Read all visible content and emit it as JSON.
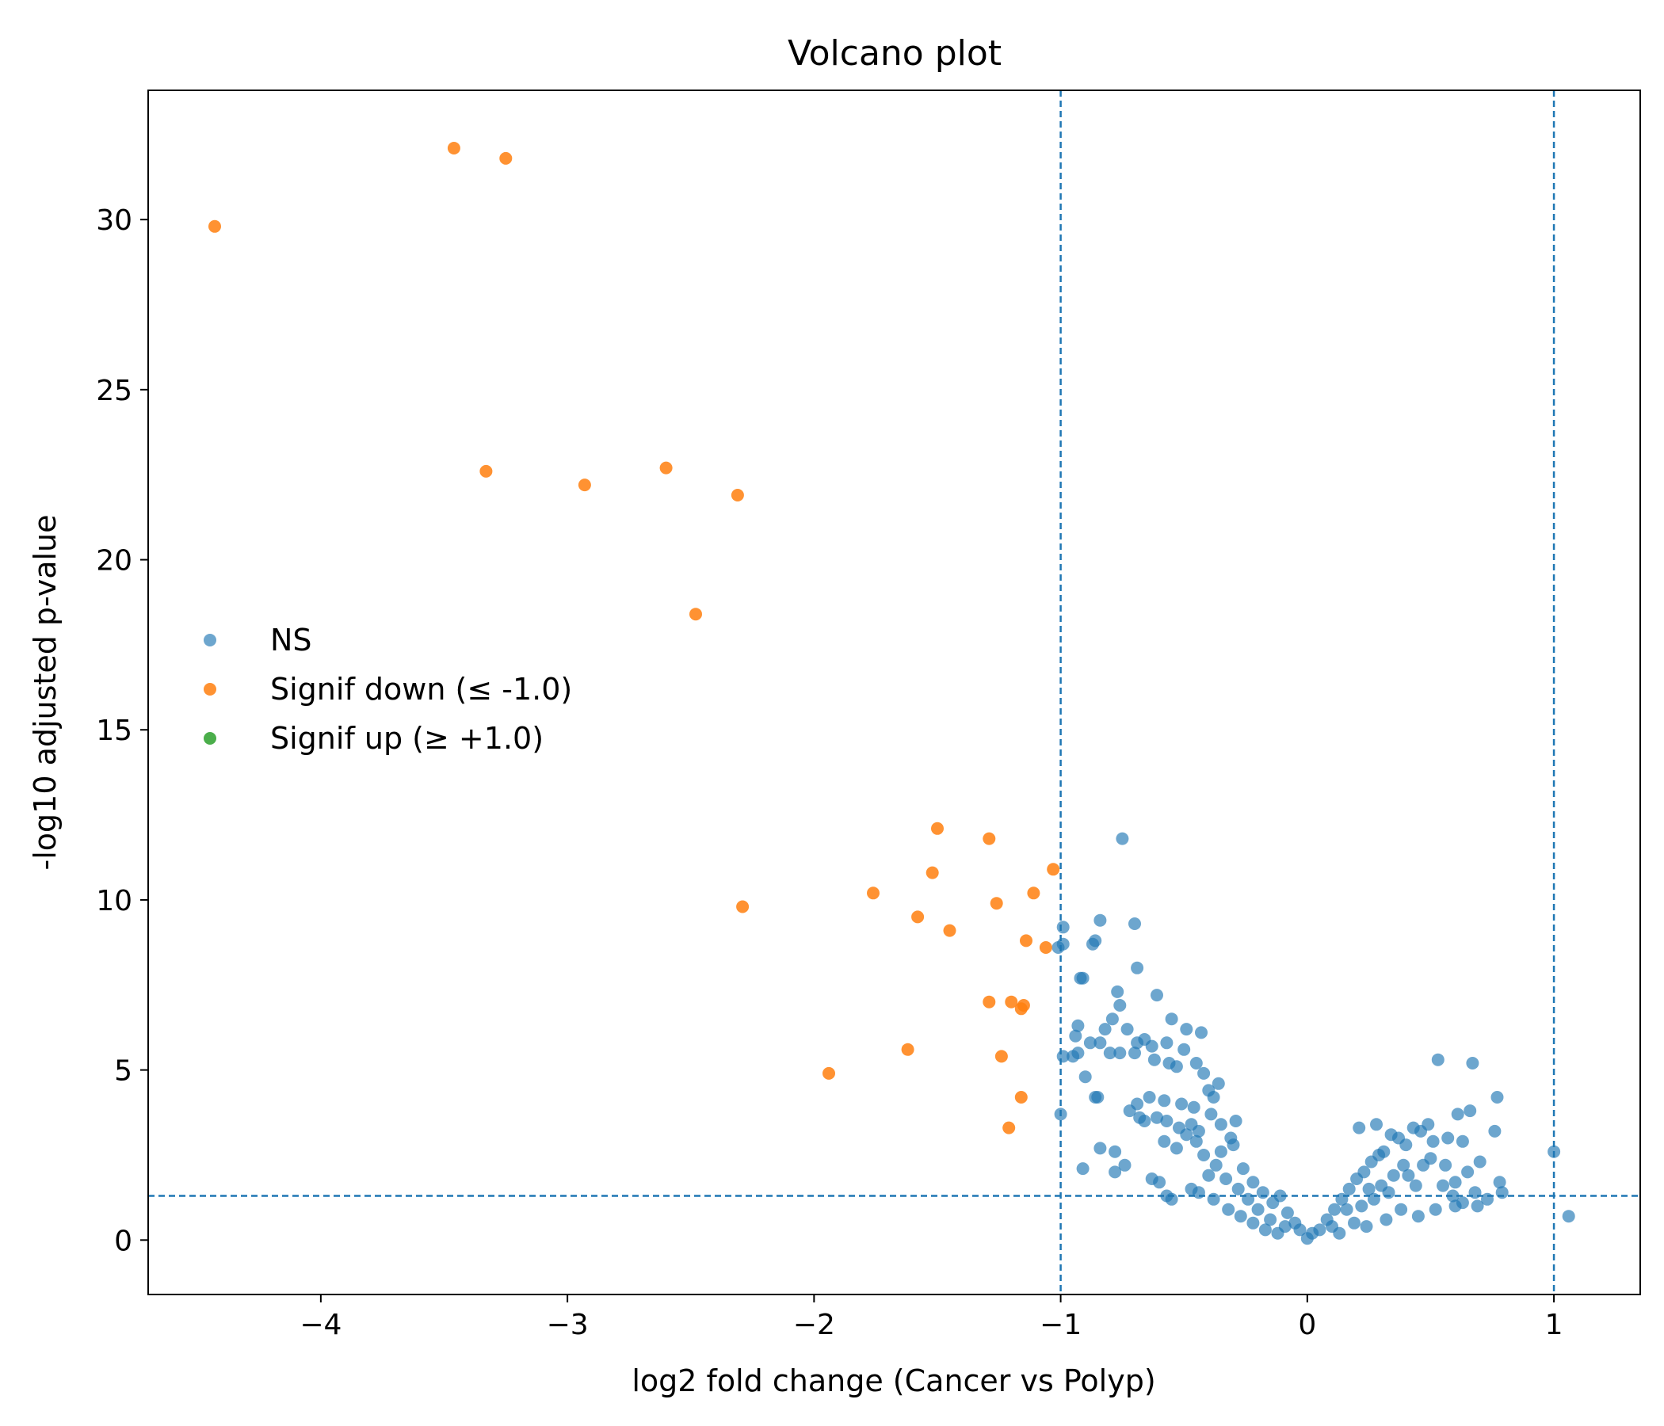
{
  "chart_data": {
    "type": "scatter",
    "title": "Volcano plot",
    "xlabel": "log2 fold change (Cancer vs Polyp)",
    "ylabel": "-log10 adjusted p-value",
    "xlim": [
      -4.7,
      1.35
    ],
    "ylim": [
      -1.6,
      33.8
    ],
    "xticks": [
      -4,
      -3,
      -2,
      -1,
      0,
      1
    ],
    "xtick_labels": [
      "−4",
      "−3",
      "−2",
      "−1",
      "0",
      "1"
    ],
    "yticks": [
      0,
      5,
      10,
      15,
      20,
      25,
      30
    ],
    "ytick_labels": [
      "0",
      "5",
      "10",
      "15",
      "20",
      "25",
      "30"
    ],
    "grid": false,
    "legend_position": "center-left",
    "thresholds": {
      "log2fc": [
        -1.0,
        1.0
      ],
      "neg_log10_p": 1.3
    },
    "threshold_color": "#1f77b4",
    "series": [
      {
        "name": "NS",
        "color": "#1f77b4",
        "alpha": 0.65,
        "points": [
          [
            -0.75,
            11.8
          ],
          [
            -0.99,
            9.2
          ],
          [
            -0.99,
            8.7
          ],
          [
            -1.01,
            8.6
          ],
          [
            -0.84,
            9.4
          ],
          [
            -0.86,
            8.8
          ],
          [
            -0.87,
            8.7
          ],
          [
            -0.7,
            9.3
          ],
          [
            -0.69,
            8.0
          ],
          [
            -0.91,
            7.7
          ],
          [
            -0.92,
            7.7
          ],
          [
            -0.77,
            7.3
          ],
          [
            -0.76,
            6.9
          ],
          [
            -0.61,
            7.2
          ],
          [
            -0.55,
            6.5
          ],
          [
            -0.49,
            6.2
          ],
          [
            -0.43,
            6.1
          ],
          [
            -0.93,
            6.3
          ],
          [
            -0.94,
            6.0
          ],
          [
            -0.82,
            6.2
          ],
          [
            -0.79,
            6.5
          ],
          [
            -0.73,
            6.2
          ],
          [
            -0.66,
            5.9
          ],
          [
            -0.69,
            5.8
          ],
          [
            -0.63,
            5.7
          ],
          [
            -0.57,
            5.8
          ],
          [
            -0.5,
            5.6
          ],
          [
            -0.99,
            5.4
          ],
          [
            -0.93,
            5.5
          ],
          [
            -0.88,
            5.8
          ],
          [
            -0.84,
            5.8
          ],
          [
            -0.8,
            5.5
          ],
          [
            -0.76,
            5.5
          ],
          [
            -0.7,
            5.5
          ],
          [
            -0.62,
            5.3
          ],
          [
            -0.56,
            5.2
          ],
          [
            -0.53,
            5.1
          ],
          [
            -0.45,
            5.2
          ],
          [
            -0.42,
            4.9
          ],
          [
            -0.95,
            5.4
          ],
          [
            -0.9,
            4.8
          ],
          [
            -0.86,
            4.2
          ],
          [
            -0.85,
            4.2
          ],
          [
            -0.69,
            4.0
          ],
          [
            -0.64,
            4.2
          ],
          [
            -0.58,
            4.1
          ],
          [
            -0.51,
            4.0
          ],
          [
            -0.46,
            3.9
          ],
          [
            -0.4,
            4.4
          ],
          [
            -0.38,
            4.2
          ],
          [
            -0.36,
            4.6
          ],
          [
            -1.0,
            3.7
          ],
          [
            -0.72,
            3.8
          ],
          [
            -0.68,
            3.6
          ],
          [
            -0.66,
            3.5
          ],
          [
            -0.61,
            3.6
          ],
          [
            -0.57,
            3.5
          ],
          [
            -0.52,
            3.3
          ],
          [
            -0.47,
            3.4
          ],
          [
            -0.44,
            3.2
          ],
          [
            -0.39,
            3.7
          ],
          [
            -0.35,
            3.4
          ],
          [
            -0.29,
            3.5
          ],
          [
            -0.31,
            3.0
          ],
          [
            -0.84,
            2.7
          ],
          [
            -0.78,
            2.6
          ],
          [
            -0.74,
            2.2
          ],
          [
            -0.78,
            2.0
          ],
          [
            -0.91,
            2.1
          ],
          [
            -0.63,
            1.8
          ],
          [
            -0.6,
            1.7
          ],
          [
            -0.57,
            1.3
          ],
          [
            -0.55,
            1.2
          ],
          [
            -0.47,
            1.5
          ],
          [
            -0.4,
            1.9
          ],
          [
            -0.35,
            2.6
          ],
          [
            -0.3,
            2.8
          ],
          [
            -0.26,
            2.1
          ],
          [
            -0.22,
            1.7
          ],
          [
            -0.18,
            1.4
          ],
          [
            -0.14,
            1.1
          ],
          [
            -0.11,
            1.3
          ],
          [
            -0.08,
            0.8
          ],
          [
            -0.05,
            0.5
          ],
          [
            -0.03,
            0.3
          ],
          [
            0.0,
            0.05
          ],
          [
            0.02,
            0.2
          ],
          [
            0.05,
            0.3
          ],
          [
            0.08,
            0.6
          ],
          [
            0.11,
            0.9
          ],
          [
            0.14,
            1.2
          ],
          [
            0.17,
            1.5
          ],
          [
            0.2,
            1.8
          ],
          [
            0.23,
            2.0
          ],
          [
            0.26,
            2.3
          ],
          [
            0.29,
            2.5
          ],
          [
            0.31,
            2.6
          ],
          [
            0.34,
            3.1
          ],
          [
            0.37,
            3.0
          ],
          [
            0.4,
            2.8
          ],
          [
            0.43,
            3.3
          ],
          [
            0.46,
            3.2
          ],
          [
            0.49,
            3.4
          ],
          [
            0.51,
            2.9
          ],
          [
            0.53,
            5.3
          ],
          [
            0.67,
            5.2
          ],
          [
            0.66,
            3.8
          ],
          [
            0.61,
            3.7
          ],
          [
            0.57,
            3.0
          ],
          [
            0.63,
            2.9
          ],
          [
            0.77,
            4.2
          ],
          [
            0.76,
            3.2
          ],
          [
            0.7,
            2.3
          ],
          [
            0.65,
            2.0
          ],
          [
            0.6,
            1.7
          ],
          [
            0.55,
            1.6
          ],
          [
            0.59,
            1.3
          ],
          [
            0.63,
            1.1
          ],
          [
            0.68,
            1.4
          ],
          [
            0.73,
            1.2
          ],
          [
            0.78,
            1.7
          ],
          [
            0.79,
            1.4
          ],
          [
            0.69,
            1.0
          ],
          [
            0.6,
            1.0
          ],
          [
            0.52,
            0.9
          ],
          [
            0.45,
            0.7
          ],
          [
            0.38,
            0.9
          ],
          [
            0.32,
            0.6
          ],
          [
            0.24,
            0.4
          ],
          [
            0.19,
            0.5
          ],
          [
            1.0,
            2.6
          ],
          [
            1.06,
            0.7
          ],
          [
            0.28,
            3.4
          ],
          [
            0.21,
            3.3
          ],
          [
            0.35,
            1.9
          ],
          [
            0.3,
            1.6
          ],
          [
            0.25,
            1.5
          ],
          [
            0.16,
            0.9
          ],
          [
            0.1,
            0.4
          ],
          [
            -0.09,
            0.4
          ],
          [
            -0.15,
            0.6
          ],
          [
            -0.2,
            0.9
          ],
          [
            -0.24,
            1.2
          ],
          [
            -0.28,
            1.5
          ],
          [
            -0.33,
            1.8
          ],
          [
            -0.37,
            2.2
          ],
          [
            -0.42,
            2.5
          ],
          [
            -0.45,
            2.9
          ],
          [
            -0.49,
            3.1
          ],
          [
            -0.53,
            2.7
          ],
          [
            -0.58,
            2.9
          ],
          [
            -0.44,
            1.4
          ],
          [
            -0.38,
            1.2
          ],
          [
            -0.32,
            0.9
          ],
          [
            -0.27,
            0.7
          ],
          [
            -0.22,
            0.5
          ],
          [
            -0.17,
            0.3
          ],
          [
            -0.12,
            0.2
          ],
          [
            0.13,
            0.2
          ],
          [
            0.22,
            1.0
          ],
          [
            0.27,
            1.2
          ],
          [
            0.33,
            1.4
          ],
          [
            0.41,
            1.9
          ],
          [
            0.47,
            2.2
          ],
          [
            0.5,
            2.4
          ],
          [
            0.56,
            2.2
          ],
          [
            0.39,
            2.2
          ],
          [
            0.44,
            1.6
          ]
        ]
      },
      {
        "name": "Signif down (≤ -1.0)",
        "color": "#ff7f0e",
        "alpha": 0.85,
        "points": [
          [
            -4.43,
            29.8
          ],
          [
            -3.46,
            32.1
          ],
          [
            -3.25,
            31.8
          ],
          [
            -3.33,
            22.6
          ],
          [
            -2.93,
            22.2
          ],
          [
            -2.6,
            22.7
          ],
          [
            -2.31,
            21.9
          ],
          [
            -2.48,
            18.4
          ],
          [
            -2.29,
            9.8
          ],
          [
            -1.94,
            4.9
          ],
          [
            -1.76,
            10.2
          ],
          [
            -1.62,
            5.6
          ],
          [
            -1.58,
            9.5
          ],
          [
            -1.5,
            12.1
          ],
          [
            -1.52,
            10.8
          ],
          [
            -1.45,
            9.1
          ],
          [
            -1.29,
            11.8
          ],
          [
            -1.26,
            9.9
          ],
          [
            -1.29,
            7.0
          ],
          [
            -1.24,
            5.4
          ],
          [
            -1.21,
            3.3
          ],
          [
            -1.2,
            7.0
          ],
          [
            -1.16,
            4.2
          ],
          [
            -1.16,
            6.8
          ],
          [
            -1.15,
            6.9
          ],
          [
            -1.14,
            8.8
          ],
          [
            -1.11,
            10.2
          ],
          [
            -1.06,
            8.6
          ],
          [
            -1.03,
            10.9
          ]
        ]
      },
      {
        "name": "Signif up (≥ +1.0)",
        "color": "#2ca02c",
        "alpha": 0.85,
        "points": []
      }
    ]
  }
}
